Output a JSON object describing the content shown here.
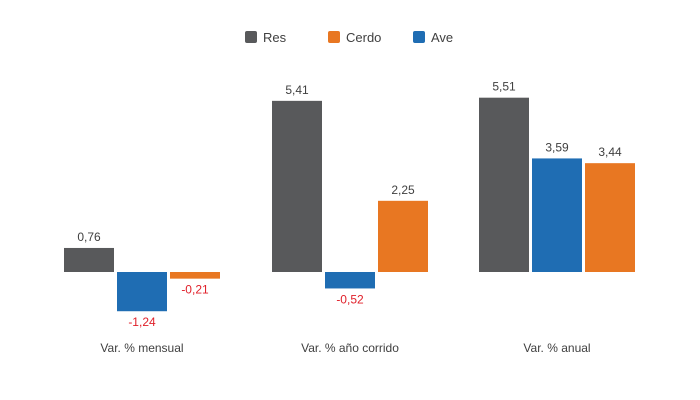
{
  "chart_data": {
    "type": "bar",
    "categories": [
      "Var. % mensual",
      "Var. % año corrido",
      "Var. % anual"
    ],
    "series": [
      {
        "name": "Res",
        "color": "#58595b",
        "values": [
          0.76,
          5.41,
          5.51
        ],
        "labels": [
          "0,76",
          "5,41",
          "5,51"
        ]
      },
      {
        "name": "Ave",
        "color": "#1f6db3",
        "values": [
          -1.24,
          -0.52,
          3.59
        ],
        "labels": [
          "-1,24",
          "-0,52",
          "3,59"
        ]
      },
      {
        "name": "Cerdo",
        "color": "#e87722",
        "values": [
          -0.21,
          2.25,
          3.44
        ],
        "labels": [
          "-0,21",
          "2,25",
          "3,44"
        ]
      }
    ],
    "legend": {
      "position": "top-center",
      "items": [
        {
          "name": "Res",
          "color": "#58595b"
        },
        {
          "name": "Cerdo",
          "color": "#e87722"
        },
        {
          "name": "Ave",
          "color": "#1f6db3"
        }
      ]
    },
    "negative_label_color": "#e0202a",
    "grid": false,
    "ylim": [
      -1.5,
      5.8
    ]
  }
}
